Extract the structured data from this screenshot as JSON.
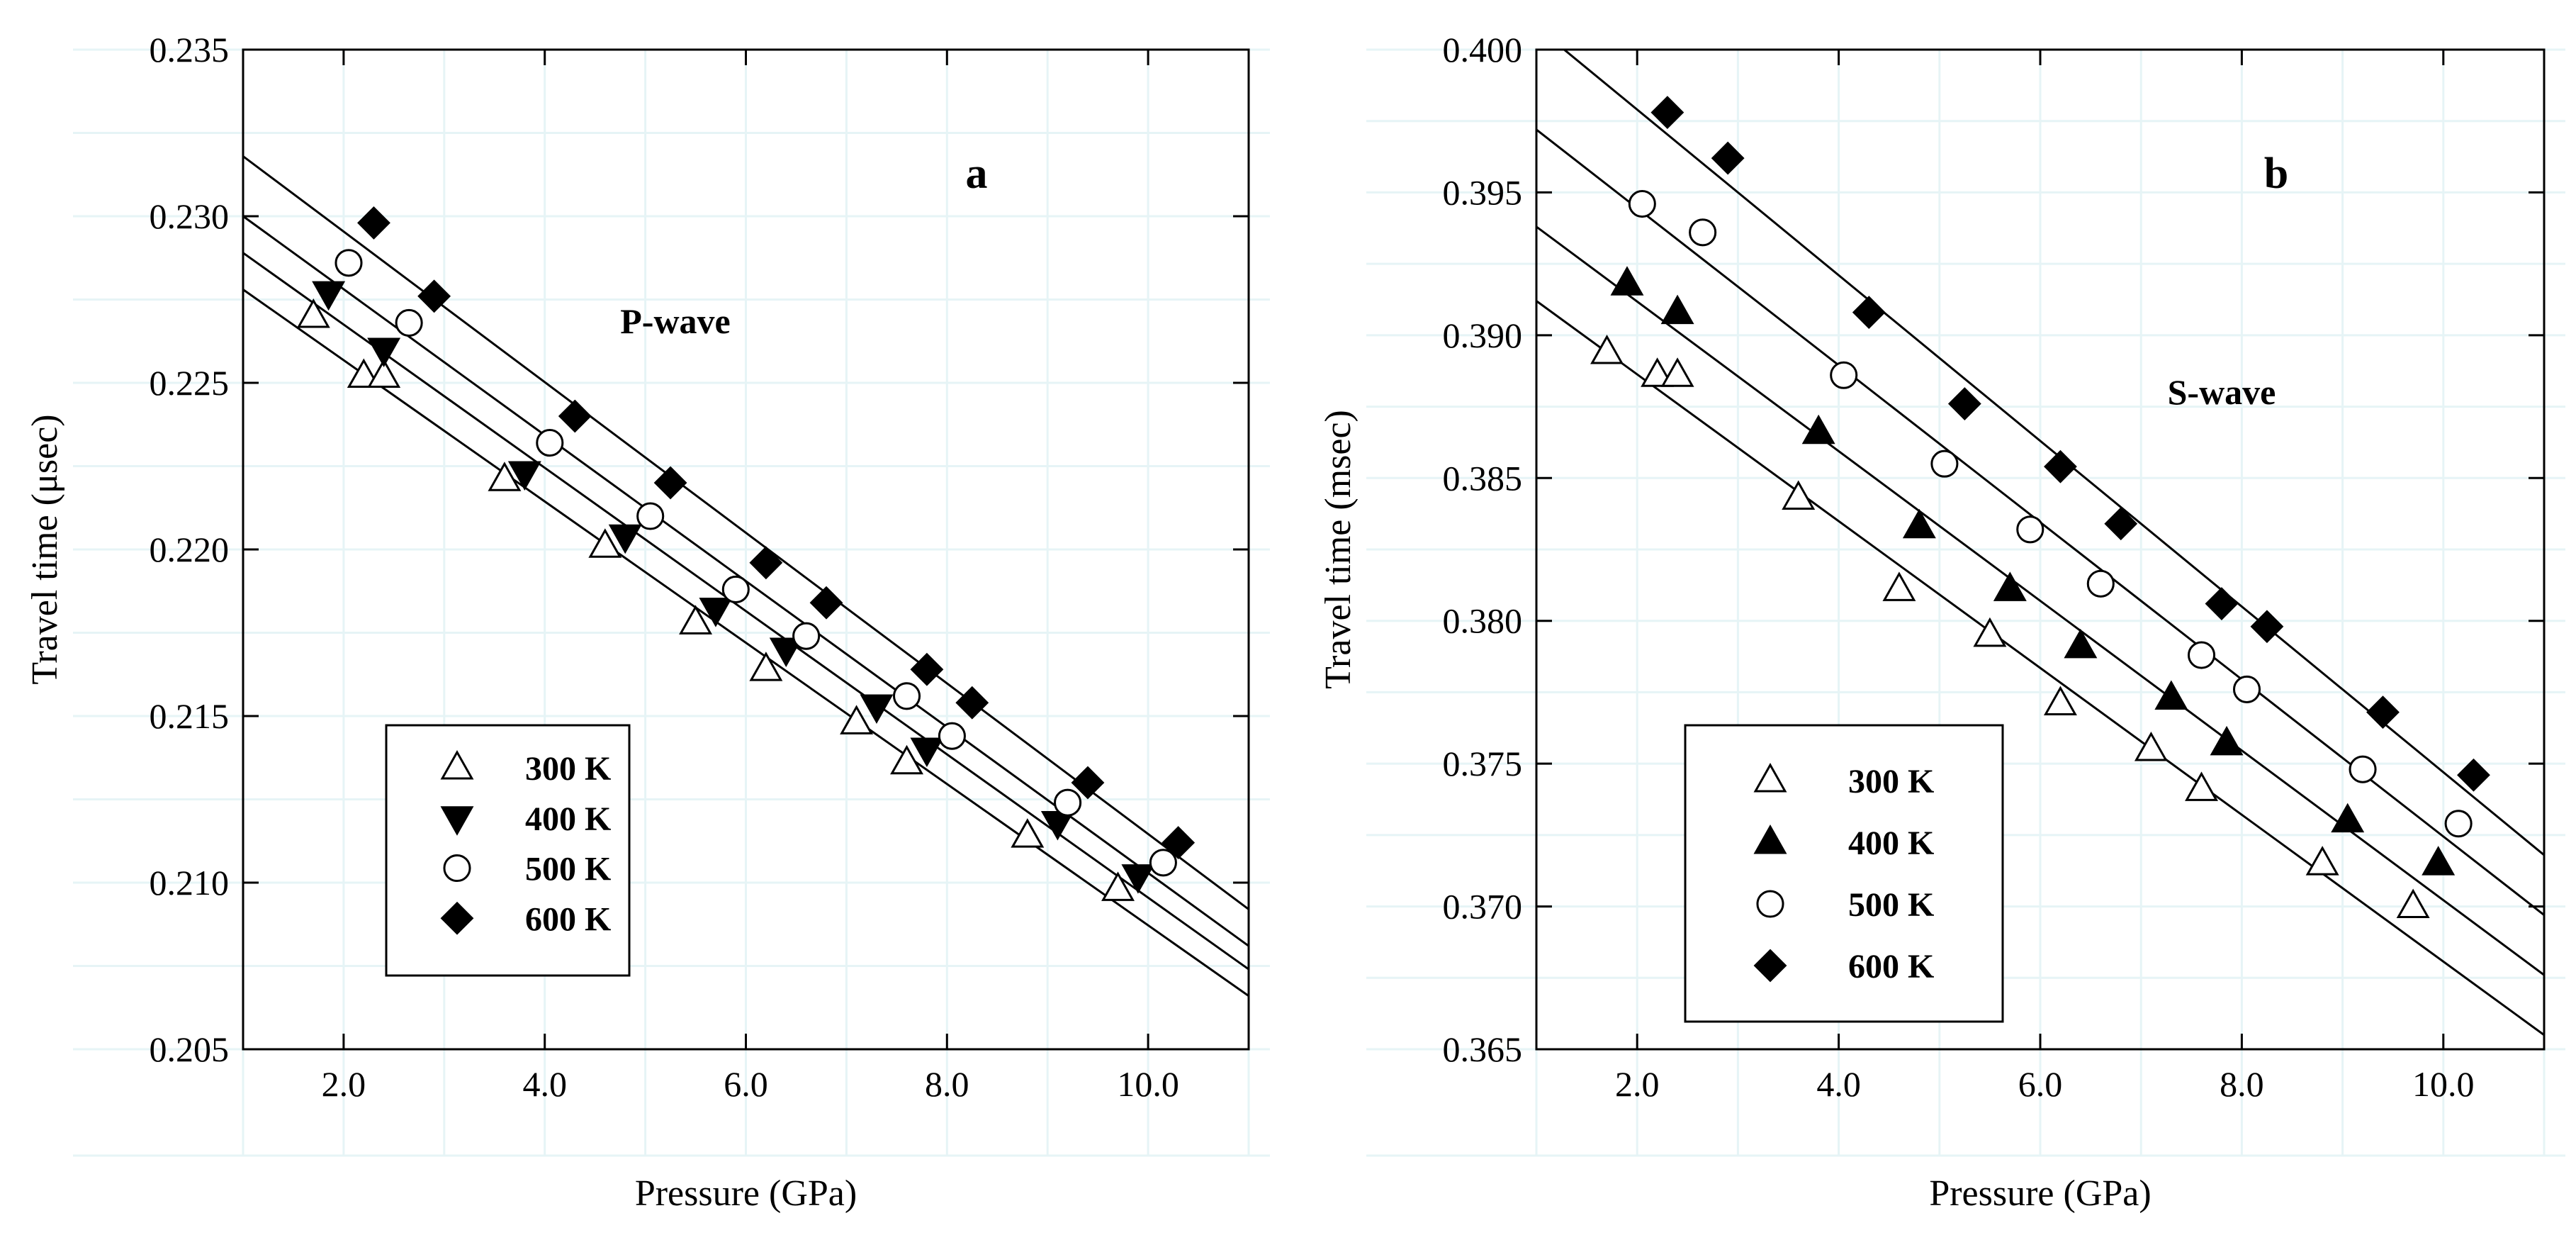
{
  "chart_data": [
    {
      "type": "scatter",
      "panel_label": "a",
      "annotation": "P-wave",
      "xlabel": "Pressure (GPa)",
      "ylabel": "Travel time (μsec)",
      "xlim": [
        1.0,
        11.0
      ],
      "ylim": [
        0.205,
        0.235
      ],
      "xticks": [
        2.0,
        4.0,
        6.0,
        8.0,
        10.0
      ],
      "xtick_labels": [
        "2.0",
        "4.0",
        "6.0",
        "8.0",
        "10.0"
      ],
      "yticks": [
        0.205,
        0.21,
        0.215,
        0.22,
        0.225,
        0.23,
        0.235
      ],
      "ytick_labels": [
        "0.205",
        "0.210",
        "0.215",
        "0.220",
        "0.225",
        "0.230",
        "0.235"
      ],
      "grid": true,
      "legend_position": "bottom-left",
      "series": [
        {
          "name": "300 K",
          "marker": "triangle-up-open",
          "x": [
            1.7,
            2.2,
            2.4,
            3.6,
            4.6,
            5.5,
            6.2,
            7.1,
            7.6,
            8.8,
            9.7
          ],
          "y": [
            0.227,
            0.2252,
            0.2252,
            0.2221,
            0.2201,
            0.2178,
            0.2164,
            0.2148,
            0.2136,
            0.2114,
            0.2098
          ],
          "fit": [
            [
              1.0,
              0.2278
            ],
            [
              11.0,
              0.2066
            ]
          ]
        },
        {
          "name": "400 K",
          "marker": "triangle-down-filled",
          "x": [
            1.85,
            2.4,
            3.8,
            4.8,
            5.7,
            6.4,
            7.3,
            7.8,
            9.1,
            9.9
          ],
          "y": [
            0.2277,
            0.226,
            0.2223,
            0.2204,
            0.2182,
            0.217,
            0.2153,
            0.214,
            0.2118,
            0.2102
          ],
          "fit": [
            [
              1.0,
              0.2289
            ],
            [
              11.0,
              0.2074
            ]
          ]
        },
        {
          "name": "500 K",
          "marker": "circle-open",
          "x": [
            2.05,
            2.65,
            4.05,
            5.05,
            5.9,
            6.6,
            7.6,
            8.05,
            9.2,
            10.15
          ],
          "y": [
            0.2286,
            0.2268,
            0.2232,
            0.221,
            0.2188,
            0.2174,
            0.2156,
            0.2144,
            0.2124,
            0.2106
          ],
          "fit": [
            [
              1.0,
              0.23
            ],
            [
              11.0,
              0.2081
            ]
          ]
        },
        {
          "name": "600 K",
          "marker": "diamond-filled",
          "x": [
            2.3,
            2.9,
            4.3,
            5.25,
            6.2,
            6.8,
            7.8,
            8.25,
            9.4,
            10.3
          ],
          "y": [
            0.2298,
            0.2276,
            0.224,
            0.222,
            0.2196,
            0.2184,
            0.2164,
            0.2154,
            0.213,
            0.2112
          ],
          "fit": [
            [
              1.0,
              0.2318
            ],
            [
              11.0,
              0.2092
            ]
          ]
        }
      ]
    },
    {
      "type": "scatter",
      "panel_label": "b",
      "annotation": "S-wave",
      "xlabel": "Pressure (GPa)",
      "ylabel": "Travel time (msec)",
      "xlim": [
        1.0,
        11.0
      ],
      "ylim": [
        0.365,
        0.4
      ],
      "xticks": [
        2.0,
        4.0,
        6.0,
        8.0,
        10.0
      ],
      "xtick_labels": [
        "2.0",
        "4.0",
        "6.0",
        "8.0",
        "10.0"
      ],
      "yticks": [
        0.365,
        0.37,
        0.375,
        0.38,
        0.385,
        0.39,
        0.395,
        0.4
      ],
      "ytick_labels": [
        "0.365",
        "0.370",
        "0.375",
        "0.380",
        "0.385",
        "0.390",
        "0.395",
        "0.400"
      ],
      "grid": true,
      "legend_position": "bottom-left",
      "series": [
        {
          "name": "300 K",
          "marker": "triangle-up-open",
          "x": [
            1.7,
            2.2,
            2.4,
            3.6,
            4.6,
            5.5,
            6.2,
            7.1,
            7.6,
            8.8,
            9.7
          ],
          "y": [
            0.3894,
            0.3886,
            0.3886,
            0.3843,
            0.3811,
            0.3795,
            0.3771,
            0.3755,
            0.3741,
            0.3715,
            0.37
          ],
          "fit": [
            [
              1.0,
              0.3912
            ],
            [
              11.0,
              0.3655
            ]
          ]
        },
        {
          "name": "400 K",
          "marker": "triangle-up-filled",
          "x": [
            1.9,
            2.4,
            3.8,
            4.8,
            5.7,
            6.4,
            7.3,
            7.85,
            9.05,
            9.95
          ],
          "y": [
            0.3918,
            0.3908,
            0.3866,
            0.3833,
            0.3811,
            0.3791,
            0.3773,
            0.3757,
            0.373,
            0.3715
          ],
          "fit": [
            [
              1.0,
              0.3938
            ],
            [
              11.0,
              0.3676
            ]
          ]
        },
        {
          "name": "500 K",
          "marker": "circle-open",
          "x": [
            2.05,
            2.65,
            4.05,
            5.05,
            5.9,
            6.6,
            7.6,
            8.05,
            9.2,
            10.15
          ],
          "y": [
            0.3946,
            0.3936,
            0.3886,
            0.3855,
            0.3832,
            0.3813,
            0.3788,
            0.3776,
            0.3748,
            0.3729
          ],
          "fit": [
            [
              1.0,
              0.3972
            ],
            [
              11.0,
              0.3697
            ]
          ]
        },
        {
          "name": "600 K",
          "marker": "diamond-filled",
          "x": [
            2.3,
            2.9,
            4.3,
            5.25,
            6.2,
            6.8,
            7.8,
            8.25,
            9.4,
            10.3
          ],
          "y": [
            0.3978,
            0.3962,
            0.3908,
            0.3876,
            0.3854,
            0.3834,
            0.3806,
            0.3798,
            0.3768,
            0.3746
          ],
          "fit": [
            [
              1.0,
              0.4008
            ],
            [
              11.0,
              0.3718
            ]
          ]
        }
      ]
    }
  ]
}
